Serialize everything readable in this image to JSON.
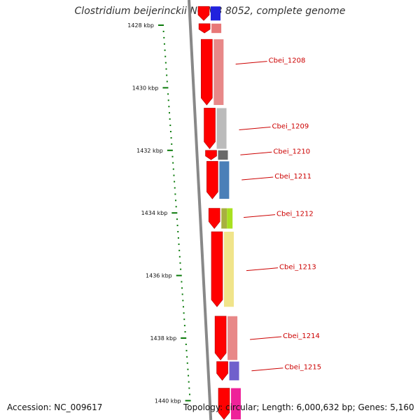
{
  "title": "Clostridium beijerinckii NCIMB 8052, complete genome",
  "footer": {
    "accession": "Accession: NC_009617",
    "stats": "Topology: circular; Length: 6,000,632 bp; Genes: 5,160"
  },
  "colors": {
    "backbone": "#8a8a8a",
    "cds_strand": "#ff0000",
    "tick": "#0a7a0a",
    "label": "#cc0000"
  },
  "ruler": {
    "unit": "kbp",
    "ticks": [
      1428,
      1430,
      1432,
      1434,
      1436,
      1438,
      1440
    ],
    "tick_labels": [
      "1428 kbp",
      "1430 kbp",
      "1432 kbp",
      "1434 kbp",
      "1436 kbp",
      "1438 kbp",
      "1440 kbp"
    ]
  },
  "genes": [
    {
      "locus": "top-a",
      "start_kbp": 1427.4,
      "end_kbp": 1427.85,
      "color": "#2222dd",
      "label": ""
    },
    {
      "locus": "top-b",
      "start_kbp": 1427.95,
      "end_kbp": 1428.25,
      "color": "#e87878",
      "label": ""
    },
    {
      "locus": "Cbei_1208",
      "start_kbp": 1428.45,
      "end_kbp": 1430.55,
      "color": "#e88888",
      "label": "Cbei_1208"
    },
    {
      "locus": "Cbei_1209",
      "start_kbp": 1430.65,
      "end_kbp": 1431.95,
      "color": "#bbbbbb",
      "label": "Cbei_1209"
    },
    {
      "locus": "Cbei_1210",
      "start_kbp": 1432.0,
      "end_kbp": 1432.3,
      "color": "#6a6a6a",
      "label": "Cbei_1210"
    },
    {
      "locus": "Cbei_1211",
      "start_kbp": 1432.35,
      "end_kbp": 1433.55,
      "color": "#4a7fb8",
      "label": "Cbei_1211"
    },
    {
      "locus": "Cbei_1212a",
      "start_kbp": 1433.85,
      "end_kbp": 1434.5,
      "color": "#a8b040",
      "label": ""
    },
    {
      "locus": "Cbei_1212",
      "start_kbp": 1433.85,
      "end_kbp": 1434.5,
      "color": "#a8e020",
      "label": "Cbei_1212"
    },
    {
      "locus": "Cbei_1213",
      "start_kbp": 1434.6,
      "end_kbp": 1437.0,
      "color": "#f0e48a",
      "label": "Cbei_1213"
    },
    {
      "locus": "Cbei_1214",
      "start_kbp": 1437.3,
      "end_kbp": 1438.7,
      "color": "#e88888",
      "label": "Cbei_1214"
    },
    {
      "locus": "Cbei_1215",
      "start_kbp": 1438.75,
      "end_kbp": 1439.35,
      "color": "#7060cc",
      "label": "Cbei_1215"
    },
    {
      "locus": "bottom-a",
      "start_kbp": 1439.6,
      "end_kbp": 1440.6,
      "color": "#ee2299",
      "label": ""
    }
  ],
  "labels": [
    {
      "text": "Cbei_1208",
      "at_kbp": 1429.2
    },
    {
      "text": "Cbei_1209",
      "at_kbp": 1431.3
    },
    {
      "text": "Cbei_1210",
      "at_kbp": 1432.1
    },
    {
      "text": "Cbei_1211",
      "at_kbp": 1432.9
    },
    {
      "text": "Cbei_1212",
      "at_kbp": 1434.1
    },
    {
      "text": "Cbei_1213",
      "at_kbp": 1435.8
    },
    {
      "text": "Cbei_1214",
      "at_kbp": 1438.0
    },
    {
      "text": "Cbei_1215",
      "at_kbp": 1439.0
    }
  ]
}
